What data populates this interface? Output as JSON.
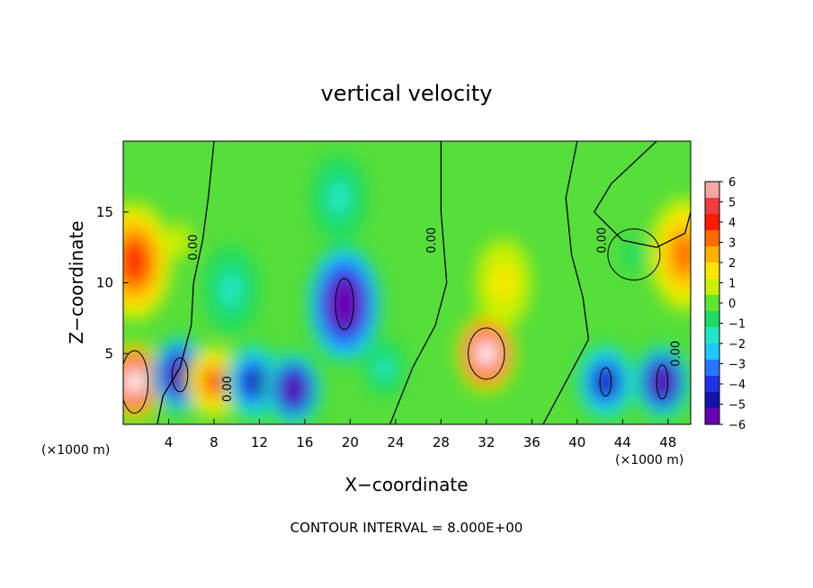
{
  "chart_data": {
    "type": "heatmap",
    "title": "vertical velocity",
    "xlabel": "X−coordinate",
    "ylabel": "Z−coordinate",
    "x_unit": "(×1000 m)",
    "z_unit": "(×1000 m)",
    "xlim": [
      0,
      50
    ],
    "ylim": [
      0,
      20
    ],
    "xticks": [
      "4",
      "8",
      "12",
      "16",
      "20",
      "24",
      "28",
      "32",
      "36",
      "40",
      "44",
      "48"
    ],
    "yticks": [
      "5",
      "10",
      "15"
    ],
    "colorbar": {
      "ticks": [
        "6",
        "5",
        "4",
        "3",
        "2",
        "1",
        "0",
        "−1",
        "−2",
        "−3",
        "−4",
        "−5",
        "−6"
      ],
      "range": [
        -6,
        6
      ],
      "colors": [
        "#f7a5a5",
        "#f03c3c",
        "#ff1a00",
        "#ff6a00",
        "#ffb000",
        "#ffe600",
        "#c8f000",
        "#5ee62e",
        "#1edc64",
        "#20e6c8",
        "#1ec8ff",
        "#2878ff",
        "#1e32e6",
        "#1414aa",
        "#6a00b4"
      ]
    },
    "contour_label": "0.00",
    "contour_interval": "CONTOUR INTERVAL = 8.000E+00",
    "features": [
      {
        "x": 1.0,
        "z": 11.5,
        "value": 4.5
      },
      {
        "x": 1.0,
        "z": 3.0,
        "value": 7.0
      },
      {
        "x": 5.0,
        "z": 3.5,
        "value": -6.5
      },
      {
        "x": 8.0,
        "z": 3.0,
        "value": 4.0
      },
      {
        "x": 11.5,
        "z": 3.0,
        "value": -5.5
      },
      {
        "x": 15.0,
        "z": 2.5,
        "value": -6.0
      },
      {
        "x": 19.5,
        "z": 8.5,
        "value": -7.0
      },
      {
        "x": 19.0,
        "z": 16.0,
        "value": -1.5
      },
      {
        "x": 23.0,
        "z": 4.0,
        "value": -2.0
      },
      {
        "x": 32.0,
        "z": 5.0,
        "value": 7.0
      },
      {
        "x": 33.5,
        "z": 10.0,
        "value": 2.0
      },
      {
        "x": 42.5,
        "z": 3.0,
        "value": -5.5
      },
      {
        "x": 47.5,
        "z": 3.0,
        "value": -6.0
      },
      {
        "x": 49.5,
        "z": 12.0,
        "value": 3.5
      },
      {
        "x": 45.0,
        "z": 12.0,
        "value": -1.0
      },
      {
        "x": 9.5,
        "z": 9.5,
        "value": -2.0
      },
      {
        "x": 5.0,
        "z": 13.0,
        "value": 0.5
      }
    ]
  }
}
